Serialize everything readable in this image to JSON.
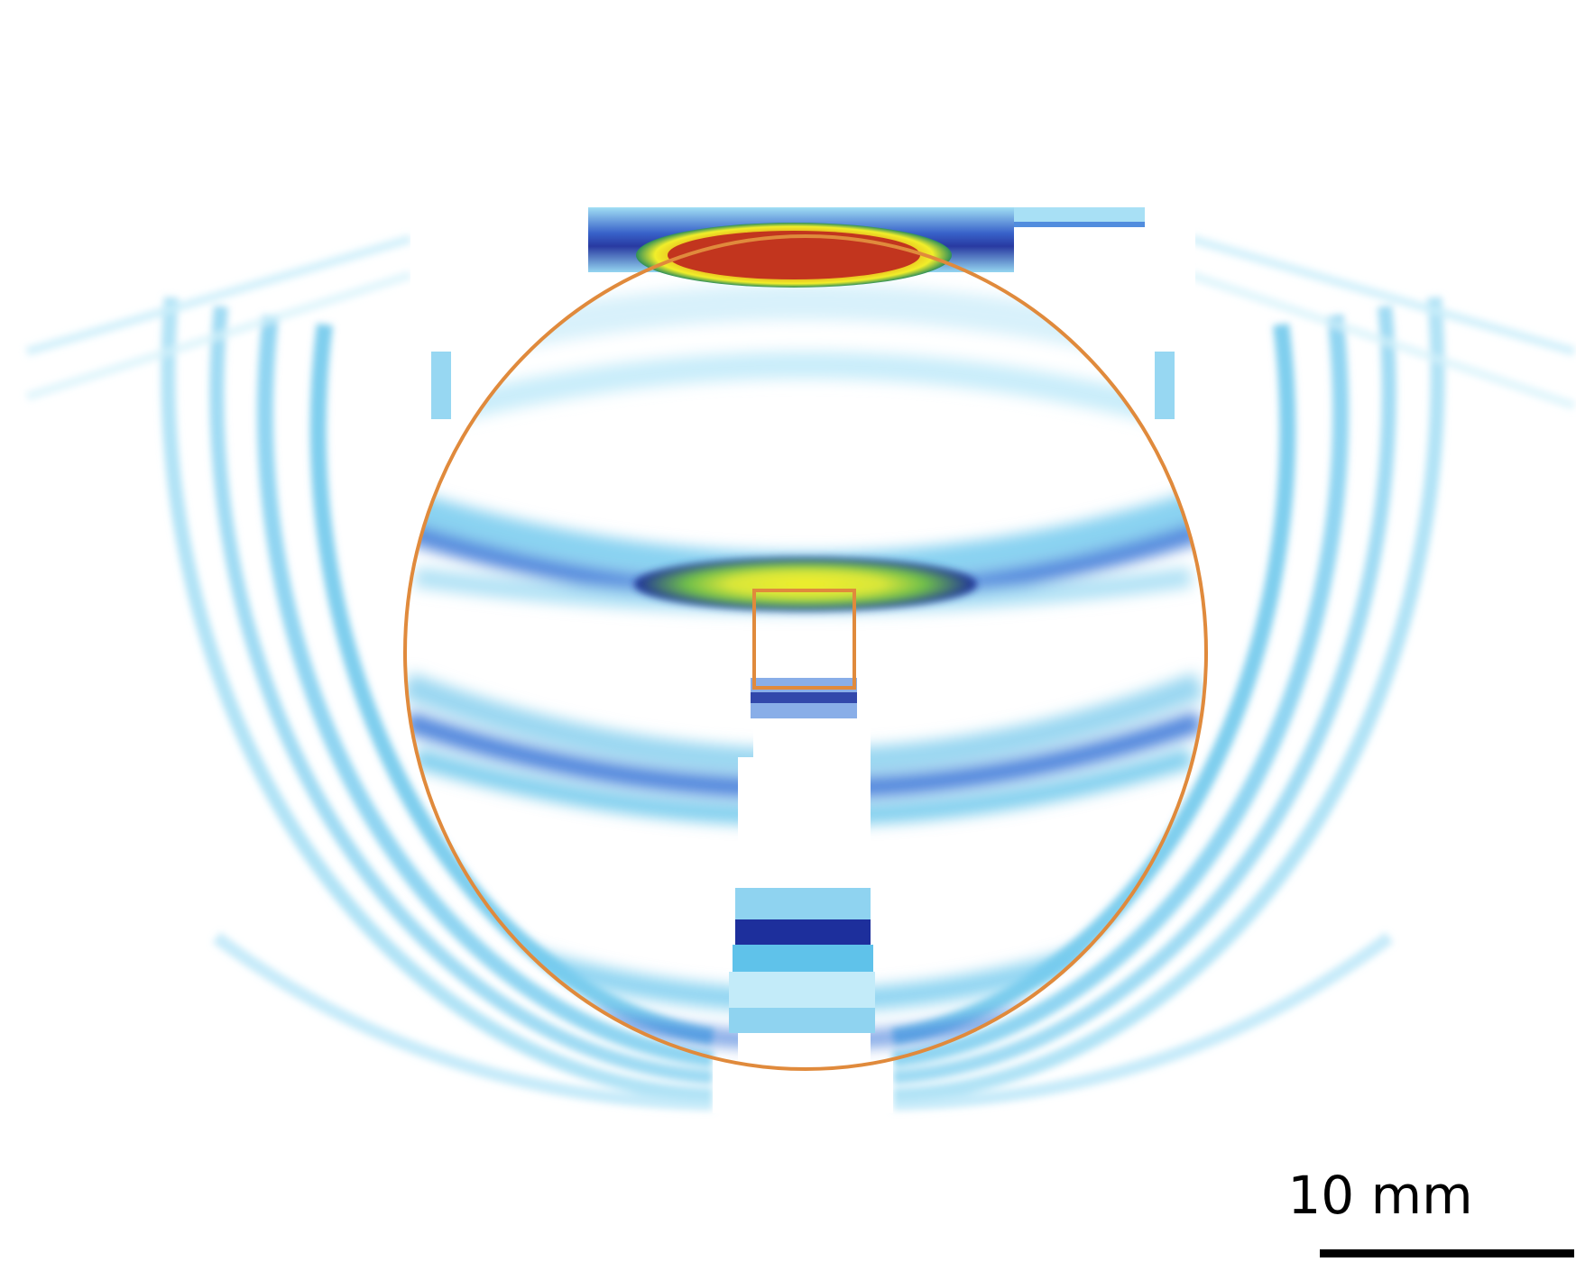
{
  "figure": {
    "description_type": "simulated wave field intensity map",
    "colormap": [
      "#ffffff",
      "#bfe8f7",
      "#5cc3ea",
      "#3b78d8",
      "#1d2f9c",
      "#2e8f5a",
      "#f1ee2a",
      "#c2351e"
    ],
    "outline_color": "#e08a3c"
  },
  "scale_bar": {
    "label": "10 mm",
    "value": 10,
    "unit": "mm",
    "color": "#000000"
  }
}
